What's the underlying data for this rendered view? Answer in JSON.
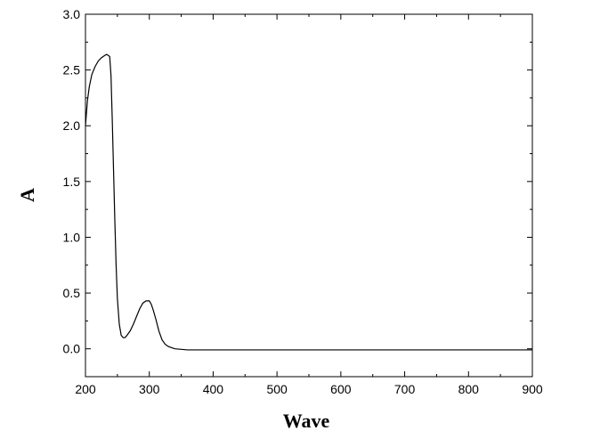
{
  "chart_data": {
    "type": "line",
    "title": "",
    "xlabel": "Wave",
    "ylabel": "A",
    "xlim": [
      200,
      900
    ],
    "ylim": [
      -0.25,
      3.0
    ],
    "x_ticks": [
      200,
      300,
      400,
      500,
      600,
      700,
      800,
      900
    ],
    "x_tick_labels": [
      "200",
      "300",
      "400",
      "500",
      "600",
      "700",
      "800",
      "900"
    ],
    "y_ticks": [
      0.0,
      0.5,
      1.0,
      1.5,
      2.0,
      2.5,
      3.0
    ],
    "y_tick_labels": [
      "0.0",
      "0.5",
      "1.0",
      "1.5",
      "2.0",
      "2.5",
      "3.0"
    ],
    "grid": false,
    "legend": "none",
    "line_color": "#000000",
    "series": [
      {
        "x": [
          200,
          203,
          206,
          210,
          215,
          220,
          225,
          230,
          233,
          236,
          238,
          240,
          242,
          244,
          246,
          248,
          250,
          253,
          256,
          259,
          262,
          265,
          270,
          275,
          280,
          285,
          290,
          295,
          300,
          303,
          306,
          310,
          315,
          320,
          325,
          330,
          335,
          340,
          350,
          360,
          380,
          400,
          500,
          600,
          700,
          800,
          900
        ],
        "y": [
          2.0,
          2.22,
          2.35,
          2.46,
          2.53,
          2.58,
          2.61,
          2.63,
          2.64,
          2.63,
          2.62,
          2.45,
          2.05,
          1.6,
          1.15,
          0.75,
          0.45,
          0.22,
          0.12,
          0.1,
          0.1,
          0.12,
          0.16,
          0.22,
          0.29,
          0.36,
          0.41,
          0.43,
          0.43,
          0.4,
          0.35,
          0.27,
          0.16,
          0.08,
          0.04,
          0.02,
          0.01,
          0.0,
          -0.005,
          -0.01,
          -0.01,
          -0.01,
          -0.01,
          -0.01,
          -0.01,
          -0.01,
          -0.01
        ]
      }
    ]
  }
}
